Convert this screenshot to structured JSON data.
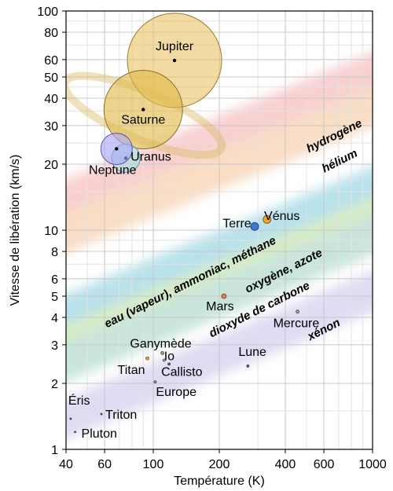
{
  "chart_data": {
    "type": "scatter",
    "xlabel": "Température (K)",
    "ylabel": "Vitesse de libération (km/s)",
    "xscale": "log",
    "yscale": "log",
    "xlim": [
      40,
      1000
    ],
    "ylim": [
      1,
      100
    ],
    "grid": true,
    "xticks": [
      {
        "value": 40,
        "label": "40"
      },
      {
        "value": 60,
        "label": "60"
      },
      {
        "value": 100,
        "label": "100"
      },
      {
        "value": 200,
        "label": "200"
      },
      {
        "value": 400,
        "label": "400"
      },
      {
        "value": 600,
        "label": "600"
      },
      {
        "value": 1000,
        "label": "1000"
      }
    ],
    "yticks": [
      {
        "value": 1,
        "label": "1"
      },
      {
        "value": 2,
        "label": "2"
      },
      {
        "value": 3,
        "label": "3"
      },
      {
        "value": 4,
        "label": "4"
      },
      {
        "value": 5,
        "label": "5"
      },
      {
        "value": 6,
        "label": "6"
      },
      {
        "value": 8,
        "label": "8"
      },
      {
        "value": 10,
        "label": "10"
      },
      {
        "value": 20,
        "label": "20"
      },
      {
        "value": 30,
        "label": "30"
      },
      {
        "value": 40,
        "label": "40"
      },
      {
        "value": 50,
        "label": "50"
      },
      {
        "value": 60,
        "label": "60"
      },
      {
        "value": 80,
        "label": "80"
      },
      {
        "value": 100,
        "label": "100"
      }
    ],
    "bands": [
      {
        "label": "hydrogène",
        "color": "#f4b4b4",
        "y40": 12.0,
        "y1000": 60.0
      },
      {
        "label": "hélium",
        "color": "#f6c9a3",
        "y40": 8.5,
        "y1000": 42.0
      },
      {
        "label": "eau (vapeur), ammoniac, méthane",
        "color": "#8fd0e0",
        "y40": 3.6,
        "y1000": 18.0
      },
      {
        "label": "oxygène, azote",
        "color": "#bfe39a",
        "y40": 2.6,
        "y1000": 13.0
      },
      {
        "label": "dioxyde de carbone",
        "color": "#a9d6c6",
        "y40": 2.2,
        "y1000": 11.0
      },
      {
        "label": "xénon",
        "color": "#cfc5ec",
        "y40": 1.2,
        "y1000": 6.0
      }
    ],
    "band_label_values": [
      {
        "text": "hydrogène",
        "x": 680,
        "y": 26
      },
      {
        "text": "hélium",
        "x": 720,
        "y": 20
      },
      {
        "text": "eau (vapeur), ammoniac, méthane",
        "x": 150,
        "y": 5.6
      },
      {
        "text": "oxygène, azote",
        "x": 400,
        "y": 6.3
      },
      {
        "text": "dioxyde de carbone",
        "x": 310,
        "y": 4.2
      },
      {
        "text": "xénon",
        "x": 610,
        "y": 3.4
      }
    ],
    "bodies": [
      {
        "name": "Jupiter",
        "x": 125,
        "y": 59.5,
        "r": 60,
        "fill": "#e8c56a",
        "stroke": "#9a7d2f",
        "ring": true
      },
      {
        "name": "Saturne",
        "x": 90,
        "y": 35.5,
        "r": 50,
        "fill": "#e0b94a",
        "stroke": "#8f7228",
        "ring": false
      },
      {
        "name": "Uranus",
        "x": 75,
        "y": 21.3,
        "r": 18,
        "fill": "#a7dfe4",
        "stroke": "#5a9aa0",
        "ring": false
      },
      {
        "name": "Neptune",
        "x": 68,
        "y": 23.5,
        "r": 20,
        "fill": "#a8a4f5",
        "stroke": "#5a56b0",
        "ring": false
      },
      {
        "name": "Vénus",
        "x": 290,
        "y": 10.4,
        "r": 5,
        "fill": "#3a78d4",
        "stroke": "#123a70",
        "ring": false
      },
      {
        "name": "Terre",
        "x": 330,
        "y": 11.2,
        "r": 5,
        "fill": "#f0a820",
        "stroke": "#6a4a00",
        "ring": false
      },
      {
        "name": "Mars",
        "x": 210,
        "y": 5.0,
        "r": 3,
        "fill": "#e07a5a",
        "stroke": "#7a3a2a",
        "ring": false
      },
      {
        "name": "Mercure",
        "x": 455,
        "y": 4.25,
        "r": 2,
        "fill": "#a0a0a0",
        "stroke": "#444",
        "ring": false
      },
      {
        "name": "Lune",
        "x": 270,
        "y": 2.4,
        "r": 1.5,
        "fill": "#777",
        "stroke": "#333",
        "ring": false
      },
      {
        "name": "Titan",
        "x": 94,
        "y": 2.6,
        "r": 2,
        "fill": "#e0a030",
        "stroke": "#7a5a10",
        "ring": false
      },
      {
        "name": "Ganymède",
        "x": 110,
        "y": 2.75,
        "r": 2,
        "fill": "#a0a060",
        "stroke": "#555",
        "ring": false
      },
      {
        "name": "Io",
        "x": 112,
        "y": 2.55,
        "r": 1.5,
        "fill": "#c9b040",
        "stroke": "#555",
        "ring": false
      },
      {
        "name": "Callisto",
        "x": 118,
        "y": 2.45,
        "r": 1.5,
        "fill": "#777",
        "stroke": "#333",
        "ring": false
      },
      {
        "name": "Europe",
        "x": 102,
        "y": 2.03,
        "r": 1.5,
        "fill": "#9a9a9a",
        "stroke": "#444",
        "ring": false
      },
      {
        "name": "Éris",
        "x": 42,
        "y": 1.38,
        "r": 1,
        "fill": "#666",
        "stroke": "#333",
        "ring": false
      },
      {
        "name": "Triton",
        "x": 58,
        "y": 1.45,
        "r": 1,
        "fill": "#666",
        "stroke": "#333",
        "ring": false
      },
      {
        "name": "Pluton",
        "x": 44,
        "y": 1.2,
        "r": 1,
        "fill": "#666",
        "stroke": "#333",
        "ring": false
      }
    ]
  }
}
